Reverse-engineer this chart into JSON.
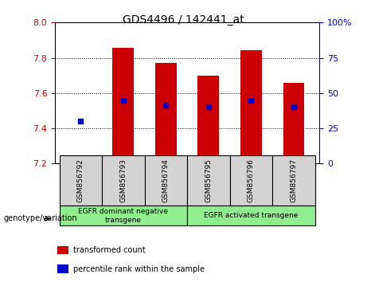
{
  "title": "GDS4496 / 142441_at",
  "samples": [
    "GSM856792",
    "GSM856793",
    "GSM856794",
    "GSM856795",
    "GSM856796",
    "GSM856797"
  ],
  "bar_base": 7.2,
  "bar_tops": [
    7.22,
    7.855,
    7.77,
    7.7,
    7.845,
    7.66
  ],
  "percentile_values": [
    7.44,
    7.558,
    7.53,
    7.522,
    7.558,
    7.522
  ],
  "ylim_left": [
    7.2,
    8.0
  ],
  "ylim_right": [
    0,
    100
  ],
  "yticks_left": [
    7.2,
    7.4,
    7.6,
    7.8,
    8.0
  ],
  "yticks_right": [
    0,
    25,
    50,
    75,
    100
  ],
  "ytick_labels_right": [
    "0",
    "25",
    "50",
    "75",
    "100%"
  ],
  "bar_color": "#cc0000",
  "percentile_color": "#0000cc",
  "grid_color": "#000000",
  "groups": [
    {
      "label": "EGFR dominant negative\ntransgene",
      "samples": [
        0,
        1,
        2
      ],
      "color": "#90ee90"
    },
    {
      "label": "EGFR activated transgene",
      "samples": [
        3,
        4,
        5
      ],
      "color": "#90ee90"
    }
  ],
  "group_label": "genotype/variation",
  "legend_items": [
    {
      "label": "transformed count",
      "color": "#cc0000"
    },
    {
      "label": "percentile rank within the sample",
      "color": "#0000cc"
    }
  ],
  "left_label_color": "#cc0000",
  "right_label_color": "#0000cc",
  "bar_width": 0.5,
  "plot_bg_color": "#f0f0f0",
  "group_box_bg": "#d3d3d3"
}
